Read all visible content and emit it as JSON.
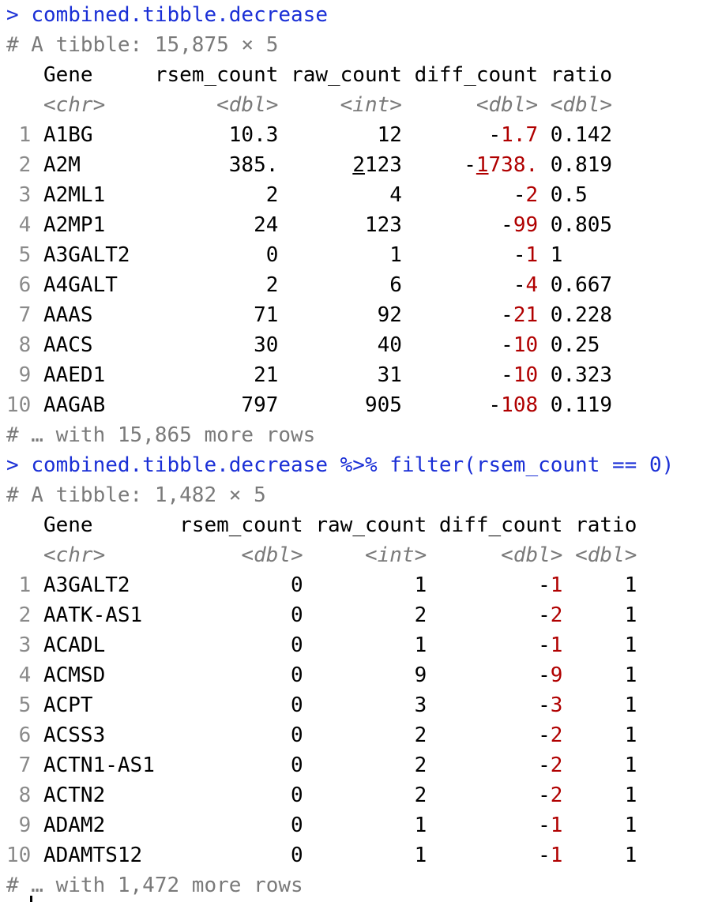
{
  "block1": {
    "prompt": "> ",
    "command": "combined.tibble.decrease",
    "summary": "# A tibble: 15,875 × 5",
    "header": {
      "c0": "  ",
      "gene": "Gene",
      "rsem": "rsem_count",
      "raw": "raw_count",
      "diff": "diff_count",
      "ratio": "ratio"
    },
    "types": {
      "gene": "<chr>",
      "rsem": "<dbl>",
      "raw": "<int>",
      "diff": "<dbl>",
      "ratio": "<dbl>"
    },
    "rows": [
      {
        "n": "1",
        "gene": "A1BG",
        "rsem": "10.3",
        "raw": "12",
        "diff_sign": "-",
        "diff_val": "1.7",
        "ratio": "0.142"
      },
      {
        "n": "2",
        "gene": "A2M",
        "rsem": "385.",
        "raw_ul": "2",
        "raw": "123",
        "diff_sign": "-",
        "diff_ul": "1",
        "diff_val": "738.",
        "ratio": "0.819"
      },
      {
        "n": "3",
        "gene": "A2ML1",
        "rsem": "2",
        "raw": "4",
        "diff_sign": "-",
        "diff_val": "2",
        "ratio": "0.5"
      },
      {
        "n": "4",
        "gene": "A2MP1",
        "rsem": "24",
        "raw": "123",
        "diff_sign": "-",
        "diff_val": "99",
        "ratio": "0.805"
      },
      {
        "n": "5",
        "gene": "A3GALT2",
        "rsem": "0",
        "raw": "1",
        "diff_sign": "-",
        "diff_val": "1",
        "ratio": "1"
      },
      {
        "n": "6",
        "gene": "A4GALT",
        "rsem": "2",
        "raw": "6",
        "diff_sign": "-",
        "diff_val": "4",
        "ratio": "0.667"
      },
      {
        "n": "7",
        "gene": "AAAS",
        "rsem": "71",
        "raw": "92",
        "diff_sign": "-",
        "diff_val": "21",
        "ratio": "0.228"
      },
      {
        "n": "8",
        "gene": "AACS",
        "rsem": "30",
        "raw": "40",
        "diff_sign": "-",
        "diff_val": "10",
        "ratio": "0.25"
      },
      {
        "n": "9",
        "gene": "AAED1",
        "rsem": "21",
        "raw": "31",
        "diff_sign": "-",
        "diff_val": "10",
        "ratio": "0.323"
      },
      {
        "n": "10",
        "gene": "AAGAB",
        "rsem": "797",
        "raw": "905",
        "diff_sign": "-",
        "diff_val": "108",
        "ratio": "0.119"
      }
    ],
    "footer": "# … with 15,865 more rows"
  },
  "block2": {
    "prompt": "> ",
    "command": "combined.tibble.decrease %>% filter(rsem_count == 0)",
    "summary": "# A tibble: 1,482 × 5",
    "header": {
      "gene": "Gene",
      "rsem": "rsem_count",
      "raw": "raw_count",
      "diff": "diff_count",
      "ratio": "ratio"
    },
    "types": {
      "gene": "<chr>",
      "rsem": "<dbl>",
      "raw": "<int>",
      "diff": "<dbl>",
      "ratio": "<dbl>"
    },
    "rows": [
      {
        "n": "1",
        "gene": "A3GALT2",
        "rsem": "0",
        "raw": "1",
        "diff_sign": "-",
        "diff_val": "1",
        "ratio": "1"
      },
      {
        "n": "2",
        "gene": "AATK-AS1",
        "rsem": "0",
        "raw": "2",
        "diff_sign": "-",
        "diff_val": "2",
        "ratio": "1"
      },
      {
        "n": "3",
        "gene": "ACADL",
        "rsem": "0",
        "raw": "1",
        "diff_sign": "-",
        "diff_val": "1",
        "ratio": "1"
      },
      {
        "n": "4",
        "gene": "ACMSD",
        "rsem": "0",
        "raw": "9",
        "diff_sign": "-",
        "diff_val": "9",
        "ratio": "1"
      },
      {
        "n": "5",
        "gene": "ACPT",
        "rsem": "0",
        "raw": "3",
        "diff_sign": "-",
        "diff_val": "3",
        "ratio": "1"
      },
      {
        "n": "6",
        "gene": "ACSS3",
        "rsem": "0",
        "raw": "2",
        "diff_sign": "-",
        "diff_val": "2",
        "ratio": "1"
      },
      {
        "n": "7",
        "gene": "ACTN1-AS1",
        "rsem": "0",
        "raw": "2",
        "diff_sign": "-",
        "diff_val": "2",
        "ratio": "1"
      },
      {
        "n": "8",
        "gene": "ACTN2",
        "rsem": "0",
        "raw": "2",
        "diff_sign": "-",
        "diff_val": "2",
        "ratio": "1"
      },
      {
        "n": "9",
        "gene": "ADAM2",
        "rsem": "0",
        "raw": "1",
        "diff_sign": "-",
        "diff_val": "1",
        "ratio": "1"
      },
      {
        "n": "10",
        "gene": "ADAMTS12",
        "rsem": "0",
        "raw": "1",
        "diff_sign": "-",
        "diff_val": "1",
        "ratio": "1"
      }
    ],
    "footer": "# … with 1,472 more rows"
  }
}
